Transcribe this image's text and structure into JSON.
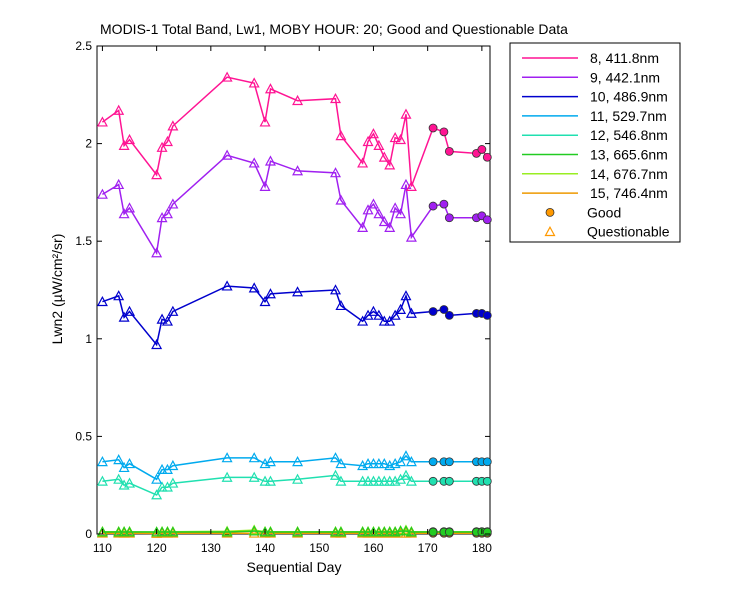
{
  "chart_data": {
    "type": "line",
    "title": "MODIS-1 Total Band, Lw1, MOBY HOUR: 20;  Good and Questionable Data",
    "xlabel": "Sequential Day",
    "ylabel": "Lwn2 (µW/cm²/sr)",
    "xlim": [
      109,
      181.5
    ],
    "ylim": [
      0,
      2.5
    ],
    "xticks": [
      110,
      120,
      130,
      140,
      150,
      160,
      170,
      180
    ],
    "yticks": [
      0,
      0.5,
      1,
      1.5,
      2,
      2.5
    ],
    "grid": false,
    "legend_position": "outside-right-top",
    "marker_legend": [
      {
        "label": "Good",
        "marker": "circle",
        "color": "#ff9900"
      },
      {
        "label": "Questionable",
        "marker": "triangle",
        "color": "#ff9900"
      }
    ],
    "x": [
      110,
      113,
      114,
      115,
      120,
      121,
      122,
      123,
      133,
      138,
      140,
      141,
      146,
      153,
      154,
      158,
      159,
      160,
      161,
      162,
      163,
      164,
      165,
      166,
      167,
      171,
      173,
      174,
      179,
      180,
      181
    ],
    "quality": [
      "q",
      "q",
      "q",
      "q",
      "q",
      "q",
      "q",
      "q",
      "q",
      "q",
      "q",
      "q",
      "q",
      "q",
      "q",
      "q",
      "q",
      "q",
      "q",
      "q",
      "q",
      "q",
      "q",
      "q",
      "q",
      "g",
      "g",
      "g",
      "g",
      "g",
      "g"
    ],
    "series": [
      {
        "name": "8, 411.8nm",
        "color": "#ff1493",
        "values": [
          2.11,
          2.17,
          1.99,
          2.02,
          1.84,
          1.98,
          2.01,
          2.09,
          2.34,
          2.31,
          2.11,
          2.28,
          2.22,
          2.23,
          2.04,
          1.9,
          2.01,
          2.05,
          1.99,
          1.93,
          1.89,
          2.03,
          2.02,
          2.15,
          1.78,
          2.08,
          2.06,
          1.96,
          1.95,
          1.97,
          1.93
        ]
      },
      {
        "name": "9, 442.1nm",
        "color": "#a020f0",
        "values": [
          1.74,
          1.79,
          1.64,
          1.67,
          1.44,
          1.62,
          1.64,
          1.69,
          1.94,
          1.9,
          1.78,
          1.91,
          1.86,
          1.85,
          1.71,
          1.57,
          1.66,
          1.69,
          1.64,
          1.6,
          1.57,
          1.67,
          1.64,
          1.79,
          1.52,
          1.68,
          1.69,
          1.62,
          1.62,
          1.63,
          1.61
        ]
      },
      {
        "name": "10, 486.9nm",
        "color": "#0000cd",
        "values": [
          1.19,
          1.22,
          1.11,
          1.14,
          0.97,
          1.1,
          1.09,
          1.14,
          1.27,
          1.26,
          1.19,
          1.23,
          1.24,
          1.25,
          1.17,
          1.09,
          1.12,
          1.14,
          1.12,
          1.09,
          1.09,
          1.12,
          1.15,
          1.22,
          1.13,
          1.14,
          1.15,
          1.12,
          1.13,
          1.13,
          1.12
        ]
      },
      {
        "name": "11, 529.7nm",
        "color": "#00aaee",
        "values": [
          0.37,
          0.38,
          0.34,
          0.36,
          0.28,
          0.33,
          0.33,
          0.35,
          0.39,
          0.39,
          0.36,
          0.37,
          0.37,
          0.39,
          0.36,
          0.35,
          0.36,
          0.36,
          0.36,
          0.36,
          0.35,
          0.36,
          0.37,
          0.4,
          0.37,
          0.37,
          0.37,
          0.37,
          0.37,
          0.37,
          0.37
        ]
      },
      {
        "name": "12, 546.8nm",
        "color": "#20e0b0",
        "values": [
          0.27,
          0.28,
          0.25,
          0.26,
          0.2,
          0.24,
          0.24,
          0.26,
          0.29,
          0.29,
          0.27,
          0.27,
          0.28,
          0.3,
          0.27,
          0.27,
          0.27,
          0.27,
          0.27,
          0.27,
          0.27,
          0.27,
          0.28,
          0.3,
          0.27,
          0.27,
          0.27,
          0.27,
          0.27,
          0.27,
          0.27
        ]
      },
      {
        "name": "13, 665.6nm",
        "color": "#22cc22",
        "values": [
          0.01,
          0.01,
          0.01,
          0.01,
          0.01,
          0.01,
          0.01,
          0.01,
          0.01,
          0.015,
          0.01,
          0.01,
          0.01,
          0.01,
          0.01,
          0.01,
          0.01,
          0.01,
          0.01,
          0.01,
          0.01,
          0.01,
          0.015,
          0.015,
          0.01,
          0.01,
          0.01,
          0.01,
          0.01,
          0.01,
          0.01
        ]
      },
      {
        "name": "14, 676.7nm",
        "color": "#99ee22",
        "values": [
          0.012,
          0.012,
          0.012,
          0.012,
          0.01,
          0.012,
          0.012,
          0.012,
          0.014,
          0.02,
          0.012,
          0.012,
          0.012,
          0.012,
          0.012,
          0.012,
          0.012,
          0.012,
          0.012,
          0.012,
          0.012,
          0.012,
          0.016,
          0.02,
          0.012,
          0.012,
          0.012,
          0.012,
          0.012,
          0.012,
          0.012
        ]
      },
      {
        "name": "15, 746.4nm",
        "color": "#ee9900",
        "values": [
          0.004,
          0.004,
          0.004,
          0.004,
          0.003,
          0.004,
          0.004,
          0.004,
          0.004,
          0.004,
          0.004,
          0.004,
          0.004,
          0.004,
          0.004,
          0.004,
          0.004,
          0.004,
          0.004,
          0.004,
          0.004,
          0.004,
          0.004,
          0.004,
          0.004,
          0.004,
          0.004,
          0.004,
          0.004,
          0.004,
          0.004
        ]
      }
    ]
  }
}
